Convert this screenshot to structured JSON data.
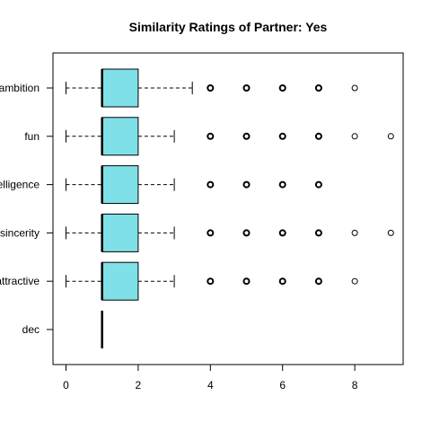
{
  "chart_data": {
    "type": "boxplot",
    "orientation": "horizontal",
    "title": "Similarity Ratings of Partner: Yes",
    "xlabel": "",
    "ylabel": "",
    "xlim": [
      -0.3,
      9.4
    ],
    "x_ticks": [
      0,
      2,
      4,
      6,
      8
    ],
    "grid": false,
    "box_color": "#7fe0e8",
    "categories": [
      "ambition",
      "fun",
      "elligence",
      "sincerity",
      "attractive",
      "dec"
    ],
    "boxes": [
      {
        "name": "ambition",
        "min": 0,
        "q1": 1,
        "median": 1,
        "q3": 2,
        "max": 3.5,
        "outliers": [
          4,
          5,
          6,
          7,
          8
        ]
      },
      {
        "name": "fun",
        "min": 0,
        "q1": 1,
        "median": 1,
        "q3": 2,
        "max": 3,
        "outliers": [
          4,
          5,
          6,
          7,
          8,
          9
        ]
      },
      {
        "name": "elligence",
        "min": 0,
        "q1": 1,
        "median": 1,
        "q3": 2,
        "max": 3,
        "outliers": [
          4,
          5,
          6,
          7
        ]
      },
      {
        "name": "sincerity",
        "min": 0,
        "q1": 1,
        "median": 1,
        "q3": 2,
        "max": 3,
        "outliers": [
          4,
          5,
          6,
          7,
          8,
          9
        ]
      },
      {
        "name": "attractive",
        "min": 0,
        "q1": 1,
        "median": 1,
        "q3": 2,
        "max": 3,
        "outliers": [
          4,
          5,
          6,
          7,
          8
        ]
      },
      {
        "name": "dec",
        "min": 1,
        "q1": 1,
        "median": 1,
        "q3": 1,
        "max": 1,
        "outliers": []
      }
    ]
  }
}
